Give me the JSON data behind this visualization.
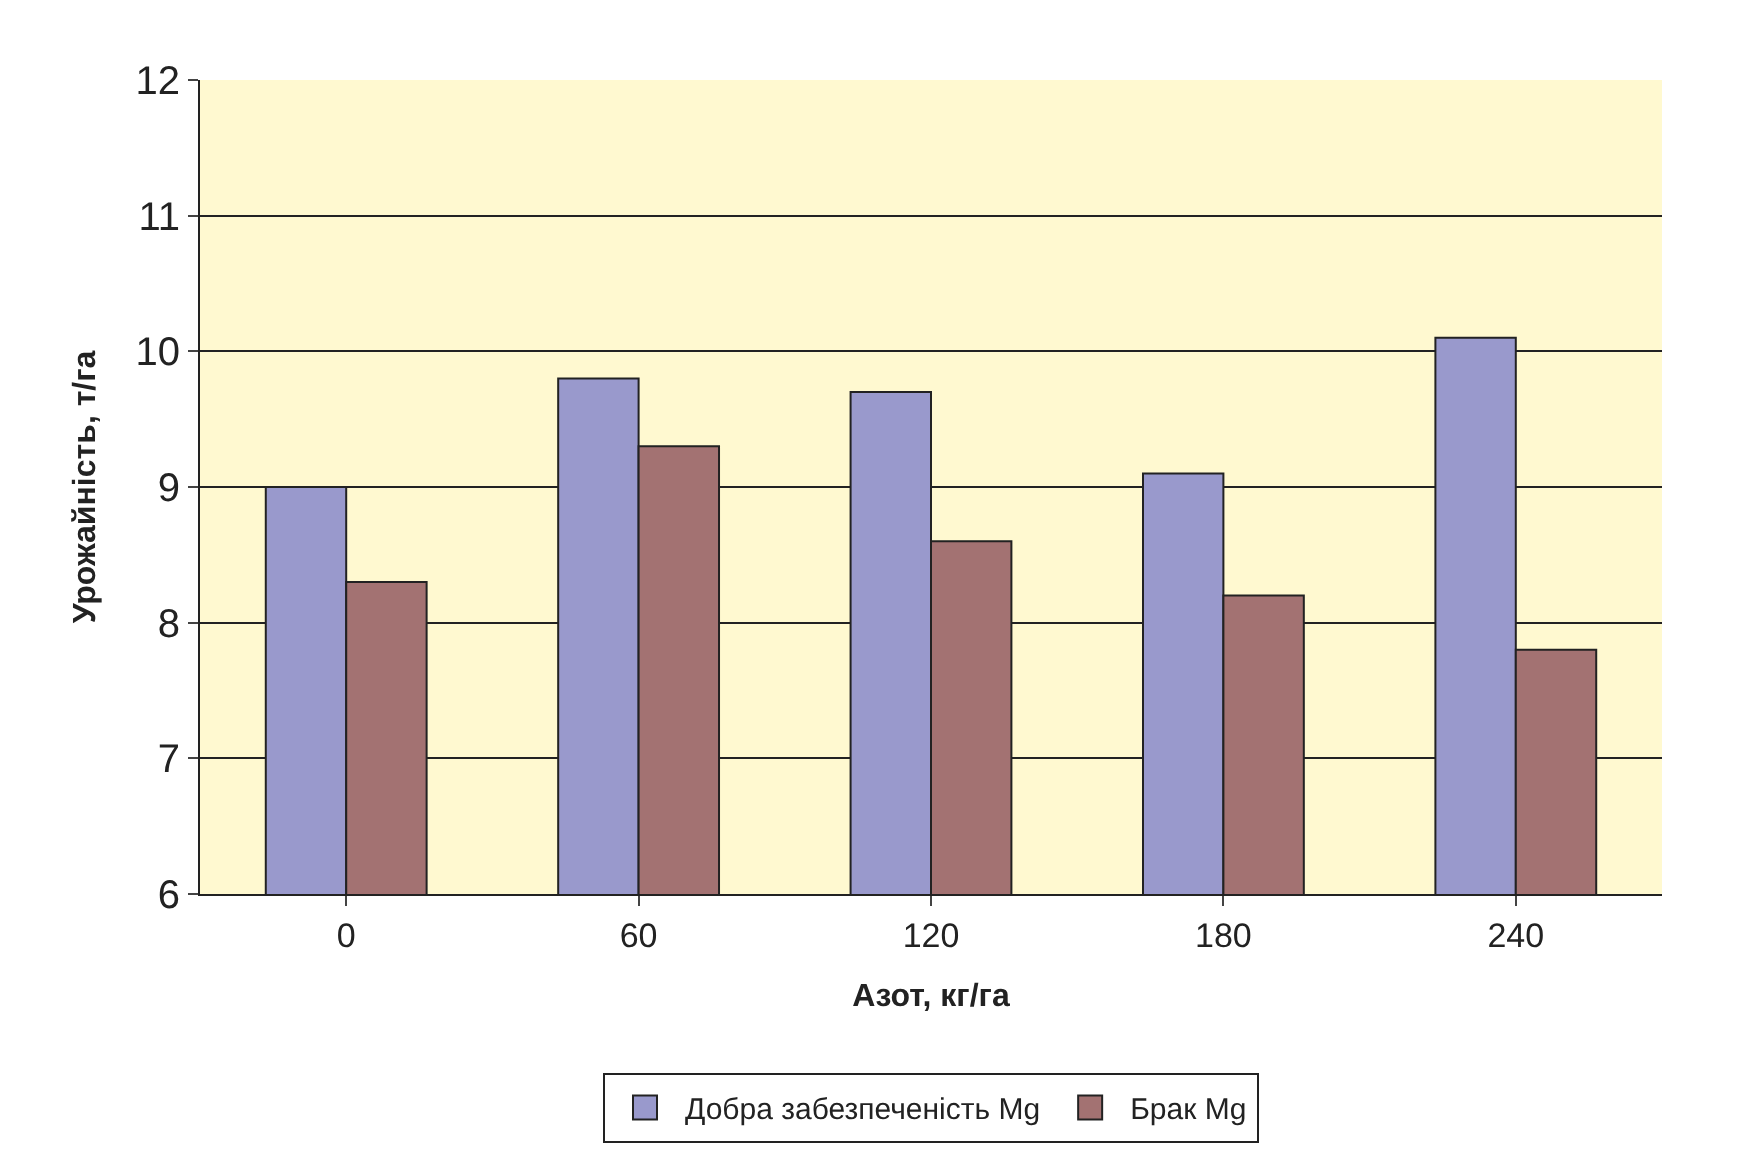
{
  "chart_data": {
    "type": "bar",
    "xlabel": "Азот, кг/га",
    "ylabel": "Урожайність, т/га",
    "categories": [
      "0",
      "60",
      "120",
      "180",
      "240"
    ],
    "series": [
      {
        "name": "Добра забезпеченість Mg",
        "color": "#9999cc",
        "values": [
          9.0,
          9.8,
          9.7,
          9.1,
          10.1
        ]
      },
      {
        "name": "Брак Mg",
        "color": "#a37272",
        "values": [
          8.3,
          9.3,
          8.6,
          8.2,
          7.8
        ]
      }
    ],
    "ylim": [
      6,
      12
    ],
    "yticks": [
      6,
      7,
      8,
      9,
      10,
      11,
      12
    ],
    "grid": "y",
    "legend": "bottom"
  }
}
